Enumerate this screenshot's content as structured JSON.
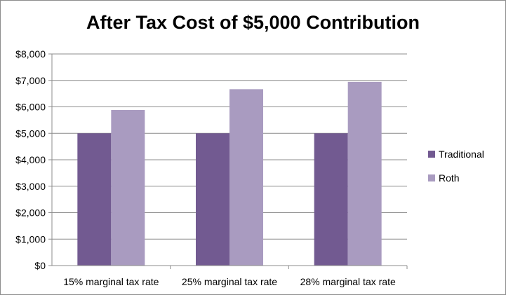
{
  "chart_data": {
    "type": "bar",
    "title": "After Tax Cost of $5,000 Contribution",
    "xlabel": "",
    "ylabel": "",
    "categories": [
      "15% marginal tax rate",
      "25% marginal tax rate",
      "28% marginal tax rate"
    ],
    "series": [
      {
        "name": "Traditional",
        "color": "#725a91",
        "values": [
          5000,
          5000,
          5000
        ]
      },
      {
        "name": "Roth",
        "color": "#a99bc0",
        "values": [
          5882,
          6667,
          6944
        ]
      }
    ],
    "ylim": [
      0,
      8000
    ],
    "y_ticks": [
      0,
      1000,
      2000,
      3000,
      4000,
      5000,
      6000,
      7000,
      8000
    ],
    "y_tick_labels": [
      "$0",
      "$1,000",
      "$2,000",
      "$3,000",
      "$4,000",
      "$5,000",
      "$6,000",
      "$7,000",
      "$8,000"
    ],
    "grid": true,
    "legend_position": "right"
  }
}
